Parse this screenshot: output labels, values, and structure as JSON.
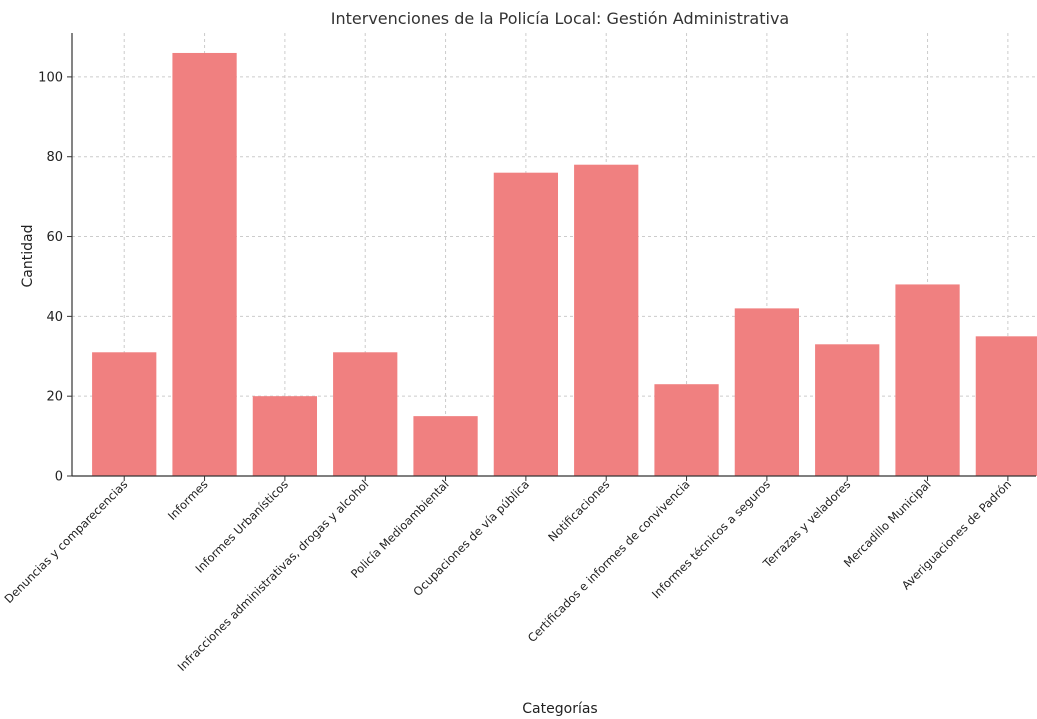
{
  "chart_data": {
    "type": "bar",
    "title": "Intervenciones de la Policía Local: Gestión Administrativa",
    "xlabel": "Categorías",
    "ylabel": "Cantidad",
    "categories": [
      "Denuncias y comparecencias",
      "Informes",
      "Informes Urbanísticos",
      "Infracciones administrativas, drogas y alcohol",
      "Policía Medioambiental",
      "Ocupaciones de vía pública",
      "Notificaciones",
      "Certificados e informes de convivencia",
      "Informes técnicos a seguros",
      "Terrazas y veladores",
      "Mercadillo Municipal",
      "Averiguaciones de Padrón"
    ],
    "values": [
      31,
      106,
      20,
      31,
      15,
      76,
      78,
      23,
      42,
      33,
      48,
      35
    ],
    "ylim": [
      0,
      111
    ],
    "yticks": [
      0,
      20,
      40,
      60,
      80,
      100
    ],
    "grid": true,
    "bar_color": "#f08080"
  }
}
